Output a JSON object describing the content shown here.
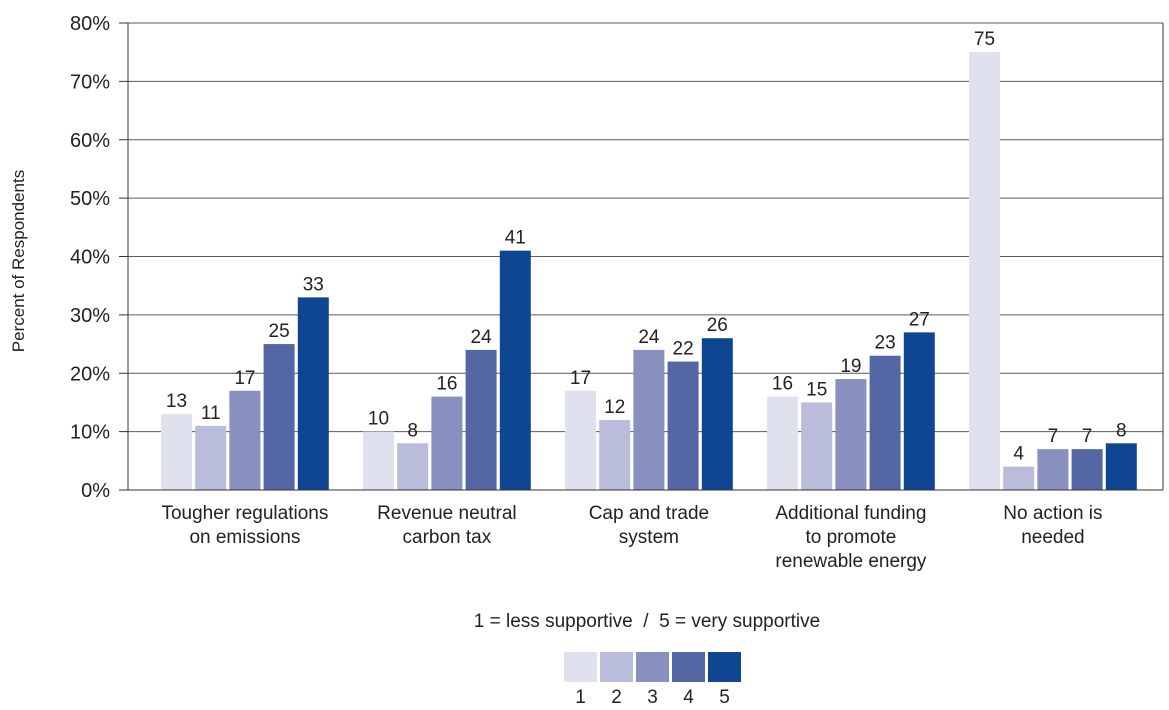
{
  "chart_data": {
    "type": "bar",
    "ylabel": "Percent of Respondents",
    "xlabel": "",
    "ylim": [
      0,
      80
    ],
    "yticks": [
      "0%",
      "10%",
      "20%",
      "30%",
      "40%",
      "50%",
      "60%",
      "70%",
      "80%"
    ],
    "grid": true,
    "categories": [
      [
        "Tougher regulations",
        "on emissions"
      ],
      [
        "Revenue neutral",
        "carbon tax"
      ],
      [
        "Cap and trade",
        "system"
      ],
      [
        "Additional funding",
        "to promote",
        "renewable energy"
      ],
      [
        "No action is",
        "needed"
      ]
    ],
    "series": [
      {
        "name": "1",
        "color": "#dfe1ef",
        "values": [
          13,
          10,
          17,
          16,
          75
        ]
      },
      {
        "name": "2",
        "color": "#b9bcdb",
        "values": [
          11,
          8,
          12,
          15,
          4
        ]
      },
      {
        "name": "3",
        "color": "#8790bf",
        "values": [
          17,
          16,
          24,
          19,
          7
        ]
      },
      {
        "name": "4",
        "color": "#5467a4",
        "values": [
          25,
          24,
          22,
          23,
          7
        ]
      },
      {
        "name": "5",
        "color": "#0e4692",
        "values": [
          33,
          41,
          26,
          27,
          8
        ]
      }
    ],
    "data_labels": [
      [
        "13",
        "10",
        "17",
        "16",
        "75"
      ],
      [
        "11",
        "8",
        "12",
        "15",
        "4"
      ],
      [
        "17",
        "16",
        "24",
        "19",
        "7"
      ],
      [
        "25",
        "24",
        "22",
        "23",
        "7"
      ],
      [
        "33",
        "41",
        "26",
        "27",
        "8"
      ]
    ],
    "legend_note": "1 = less supportive  /  5 = very supportive",
    "legend_placement": "bottom-center"
  }
}
